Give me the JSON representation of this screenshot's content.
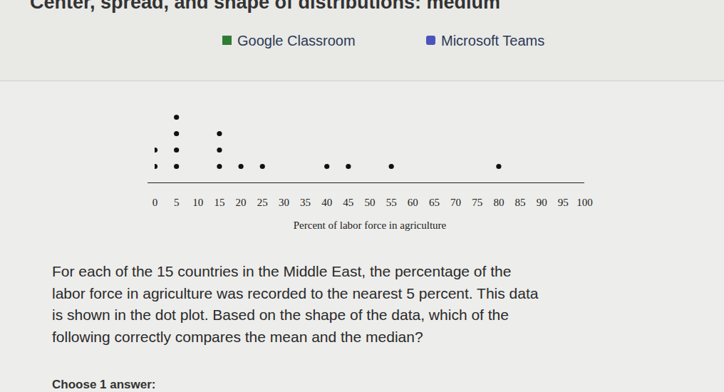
{
  "page": {
    "heading": "Center, spread, and shape of distributions: medium",
    "share": [
      "Google Classroom",
      "Microsoft Teams"
    ],
    "question_lines": [
      "For each of the 15 countries in the Middle East, the percentage of the",
      "labor force in agriculture was recorded to the nearest 5 percent. This data",
      "is shown in the dot plot. Based on the shape of the data, which of the",
      "following correctly compares the mean and the median?"
    ],
    "prompt": "Choose 1 answer:"
  },
  "chart_data": {
    "type": "dot plot",
    "x_label": "Percent of labor force in agriculture",
    "values": [
      0,
      0,
      5,
      5,
      5,
      5,
      15,
      15,
      15,
      20,
      25,
      40,
      45,
      55,
      80
    ],
    "color": "#111111",
    "xlim": [
      0,
      100
    ],
    "xticks": [
      0,
      5,
      10,
      15,
      20,
      25,
      30,
      35,
      40,
      45,
      50,
      55,
      60,
      65,
      70,
      75,
      80,
      85,
      90,
      95,
      100
    ],
    "tick_labels": "x",
    "grid": false
  }
}
